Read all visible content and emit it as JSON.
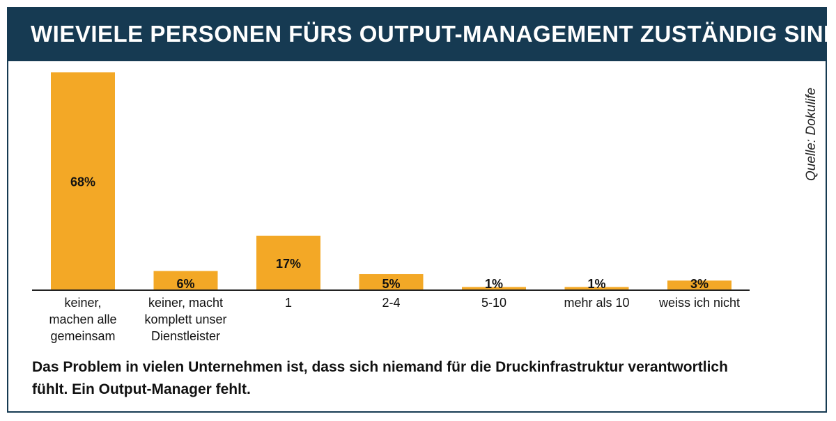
{
  "title": "WIEVIELE PERSONEN FÜRS OUTPUT-MANAGEMENT ZUSTÄNDIG SIND",
  "source": "Quelle: Dokulife",
  "caption": "Das Problem in vielen Unternehmen ist, dass sich niemand für die Druckinfrastruktur verantwortlich fühlt. Ein Output-Manager fehlt.",
  "colors": {
    "header_bg": "#163a52",
    "bar": "#f3a826",
    "axis": "#222222"
  },
  "chart_data": {
    "type": "bar",
    "categories": [
      [
        "keiner,",
        "machen alle",
        "gemeinsam"
      ],
      [
        "keiner, macht",
        "komplett unser",
        "Dienstleister"
      ],
      [
        "1"
      ],
      [
        "2-4"
      ],
      [
        "5-10"
      ],
      [
        "mehr als 10"
      ],
      [
        "weiss ich nicht"
      ]
    ],
    "values": [
      68,
      6,
      17,
      5,
      1,
      1,
      3
    ],
    "data_labels": [
      "68%",
      "6%",
      "17%",
      "5%",
      "1%",
      "1%",
      "3%"
    ],
    "ylim": [
      0,
      68
    ],
    "grid": false,
    "legend": "none"
  }
}
